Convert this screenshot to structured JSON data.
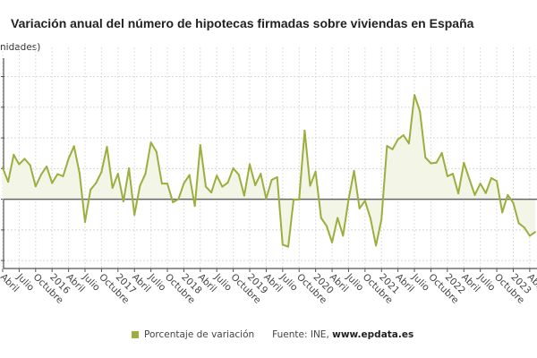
{
  "chart_data": {
    "type": "line",
    "title": "Variación anual del número de hipotecas firmadas sobre viviendas en España",
    "ylabel": "nidades)",
    "xlabel": "",
    "ylim": [
      -22,
      46
    ],
    "grid": true,
    "legend_position": "bottom",
    "colors": {
      "line": "#9aaf3e",
      "fill": "#f3f5e6",
      "zero_line": "#666666"
    },
    "x_start": "2015-04",
    "x_end": "2023-06",
    "x_tick_labels": [
      "Abril",
      "Julio",
      "Octubre",
      "2016",
      "Abril",
      "Julio",
      "Octubre",
      "2017",
      "Abril",
      "Julio",
      "Octubre",
      "2018",
      "Abril",
      "Julio",
      "Octubre",
      "2019",
      "Abril",
      "Julio",
      "Octubre",
      "2020",
      "Abril",
      "Julio",
      "Octubre",
      "2021",
      "Abril",
      "Julio",
      "Octubre",
      "2022",
      "Abril",
      "Julio",
      "Octubre",
      "2023",
      "Abril"
    ],
    "series": [
      {
        "name": "Porcentaje de variación",
        "values": [
          10.3,
          5.7,
          14.5,
          11.4,
          13.2,
          11.1,
          4.2,
          8.0,
          10.7,
          5.3,
          8.2,
          7.5,
          13.2,
          17.3,
          8.5,
          -7.4,
          3.1,
          5.3,
          8.9,
          17.1,
          3.7,
          8.3,
          -0.7,
          10.1,
          -5.1,
          4.4,
          8.3,
          18.5,
          15.5,
          5.1,
          5.1,
          -1.0,
          0.0,
          5.1,
          7.9,
          -2.2,
          17.7,
          4.1,
          2.2,
          7.7,
          4.1,
          5.4,
          10.1,
          8.0,
          1.2,
          11.4,
          4.6,
          8.3,
          0.2,
          6.3,
          7.2,
          -14.8,
          -15.5,
          -0.1,
          -0.1,
          22.4,
          4.4,
          9.0,
          -6.1,
          -8.7,
          -14.1,
          -6.1,
          -11.9,
          -0.2,
          9.3,
          -3.0,
          -0.5,
          -6.3,
          -15.1,
          -6.6,
          17.4,
          16.3,
          19.5,
          20.9,
          18.2,
          34.0,
          28.6,
          13.6,
          11.7,
          11.9,
          15.1,
          7.5,
          8.3,
          1.9,
          11.9,
          6.6,
          1.4,
          5.1,
          2.0,
          6.9,
          5.9,
          -4.3,
          1.4,
          -1.2,
          -7.8,
          -9.2,
          -11.9,
          -10.7
        ]
      }
    ]
  },
  "legend": {
    "label": "Porcentaje de variación",
    "source_prefix": "Fuente: INE, ",
    "source_site": "www.epdata.es"
  }
}
